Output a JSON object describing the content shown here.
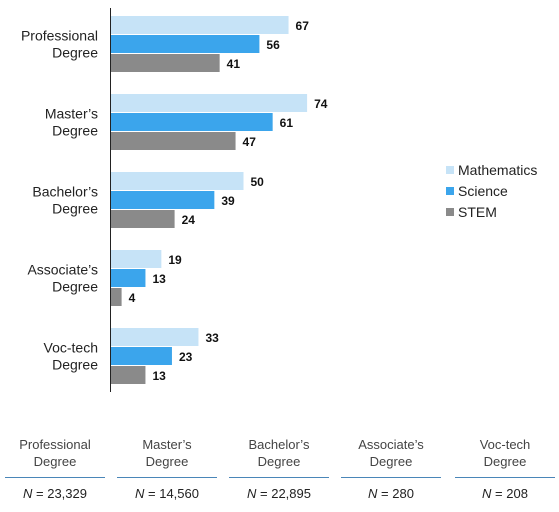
{
  "chart_data": {
    "type": "bar",
    "orientation": "horizontal",
    "categories": [
      "Professional Degree",
      "Master’s Degree",
      "Bachelor’s Degree",
      "Associate’s Degree",
      "Voc-tech Degree"
    ],
    "category_lines": [
      [
        "Professional",
        "Degree"
      ],
      [
        "Master’s",
        "Degree"
      ],
      [
        "Bachelor’s",
        "Degree"
      ],
      [
        "Associate’s",
        "Degree"
      ],
      [
        "Voc-tech",
        "Degree"
      ]
    ],
    "series": [
      {
        "name": "Mathematics",
        "color": "#c6e3f7",
        "values": [
          67,
          74,
          50,
          19,
          33
        ]
      },
      {
        "name": "Science",
        "color": "#3ba5ec",
        "values": [
          56,
          61,
          39,
          13,
          23
        ]
      },
      {
        "name": "STEM",
        "color": "#8a8a8a",
        "values": [
          41,
          47,
          24,
          4,
          13
        ]
      }
    ],
    "xlim": [
      0,
      100
    ],
    "grid": false,
    "legend_position": "right"
  },
  "n_table": {
    "columns": [
      {
        "label_line1": "Professional",
        "label_line2": "Degree",
        "n_prefix": "N",
        "n_value": "= 23,329"
      },
      {
        "label_line1": "Master’s",
        "label_line2": "Degree",
        "n_prefix": "N",
        "n_value": "= 14,560"
      },
      {
        "label_line1": "Bachelor’s",
        "label_line2": "Degree",
        "n_prefix": "N",
        "n_value": "= 22,895"
      },
      {
        "label_line1": "Associate’s",
        "label_line2": "Degree",
        "n_prefix": "N",
        "n_value": "= 280"
      },
      {
        "label_line1": "Voc-tech",
        "label_line2": "Degree",
        "n_prefix": "N",
        "n_value": "= 208"
      }
    ]
  }
}
